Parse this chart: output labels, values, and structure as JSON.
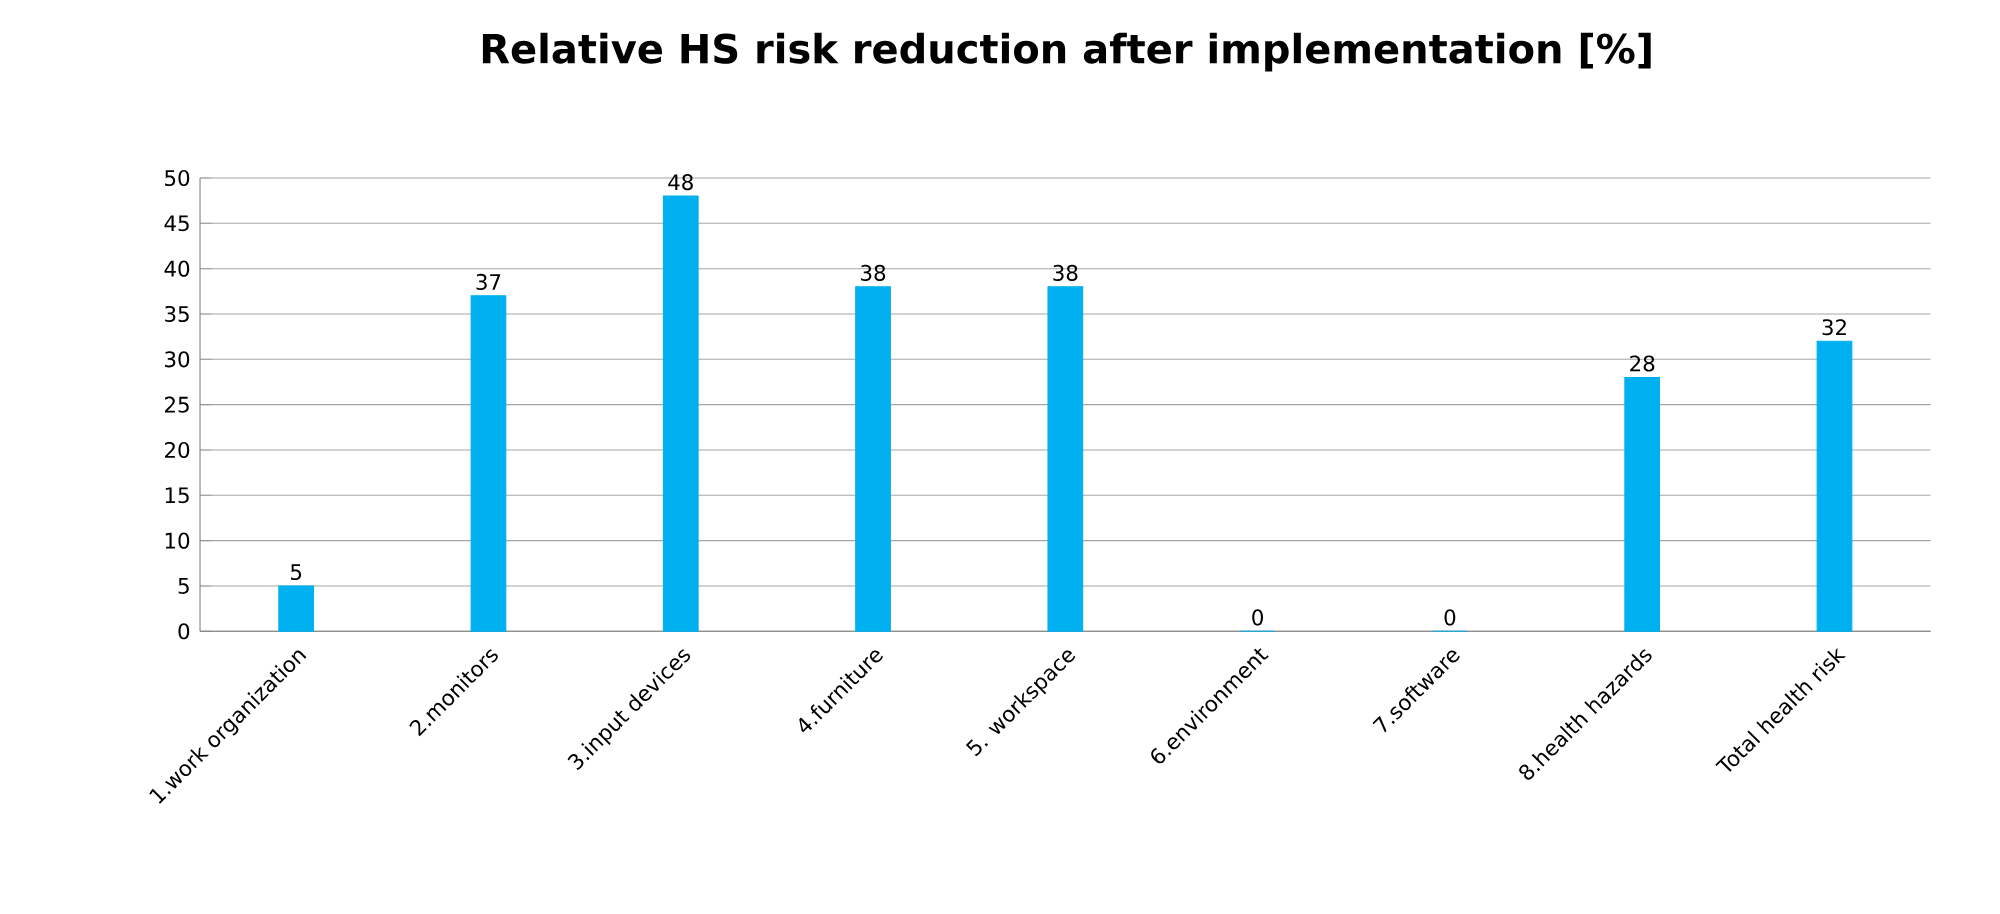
{
  "chart_data": {
    "type": "bar",
    "title": "Relative HS risk reduction after implementation [%]",
    "categories": [
      "1.work organization",
      "2.monitors",
      "3.input devices",
      "4.furniture",
      "5. workspace",
      "6.environment",
      "7.software",
      "8.health hazards",
      "Total health risk"
    ],
    "values": [
      5,
      37,
      48,
      38,
      38,
      0,
      0,
      28,
      32
    ],
    "color": "#00b0f0",
    "ylim": [
      0,
      50
    ],
    "yticks": [
      0,
      5,
      10,
      15,
      20,
      25,
      30,
      35,
      40,
      45,
      50
    ],
    "grid": "y",
    "data_labels": true
  }
}
